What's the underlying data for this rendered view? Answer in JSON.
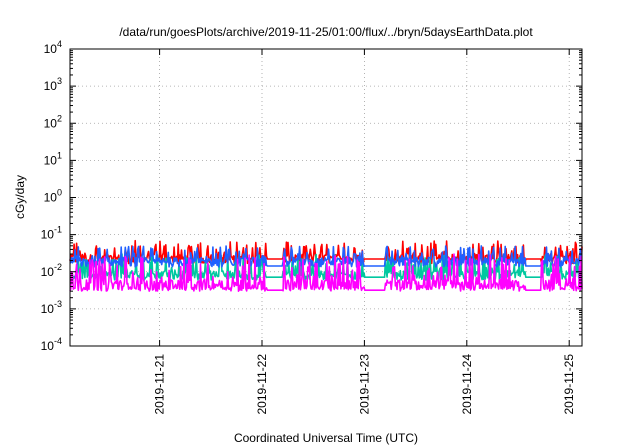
{
  "chart_data": {
    "type": "line",
    "title": "/data/run/goesPlots/archive/2019-11-25/01:00/flux/../bryn/5daysEarthData.plot",
    "xlabel": "Coordinated Universal Time (UTC)",
    "ylabel": "cGy/day",
    "yscale": "log",
    "ylim": [
      0.0001,
      10000
    ],
    "xlim": [
      "2019-11-20T03:00",
      "2019-11-25T03:00"
    ],
    "grid": true,
    "x_ticks": [
      "2019-11-21",
      "2019-11-22",
      "2019-11-23",
      "2019-11-24",
      "2019-11-25"
    ],
    "y_ticks": [
      {
        "base": "10",
        "exp": "-4"
      },
      {
        "base": "10",
        "exp": "-3"
      },
      {
        "base": "10",
        "exp": "-2"
      },
      {
        "base": "10",
        "exp": "-1"
      },
      {
        "base": "10",
        "exp": "0"
      },
      {
        "base": "10",
        "exp": "1"
      },
      {
        "base": "10",
        "exp": "2"
      },
      {
        "base": "10",
        "exp": "3"
      },
      {
        "base": "10",
        "exp": "4"
      }
    ],
    "series": [
      {
        "color": "#ff0000",
        "baseline": 0.022,
        "spike_max": 0.07
      },
      {
        "color": "#00c8a0",
        "baseline": 0.008,
        "spike_max": 0.03
      },
      {
        "color": "#2060ff",
        "baseline": 0.018,
        "spike_max": 0.05
      },
      {
        "color": "#ff00ff",
        "baseline": 0.0045,
        "spike_max": 0.03
      }
    ]
  }
}
